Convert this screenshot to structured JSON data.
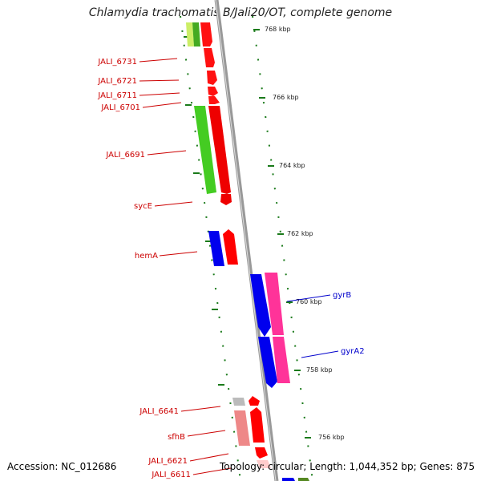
{
  "title": "Chlamydia trachomatis B/Jali20/OT, complete genome",
  "footer": {
    "accession": "Accession: NC_012686",
    "topology": "Topology: circular; Length: 1,044,352 bp; Genes: 875"
  },
  "kbp_ticks": [
    "768 kbp",
    "766 kbp",
    "764 kbp",
    "762 kbp",
    "760 kbp",
    "758 kbp",
    "756 kbp"
  ],
  "gene_labels_left": [
    "JALI_6731",
    "JALI_6721",
    "JALI_6711",
    "JALI_6701",
    "JALI_6691",
    "sycE",
    "hemA",
    "JALI_6641",
    "sfhB",
    "JALI_6621",
    "JALI_6611"
  ],
  "gene_labels_right": [
    "gyrB",
    "gyrA2"
  ],
  "colors": {
    "red": "#ff0000",
    "blue": "#0000ee",
    "magenta": "#ff3399",
    "green": "#44cc22",
    "pink": "#ee8888",
    "gray": "#bbbbbb",
    "tick_green": "#1a7a1a",
    "axis": "#999999"
  }
}
